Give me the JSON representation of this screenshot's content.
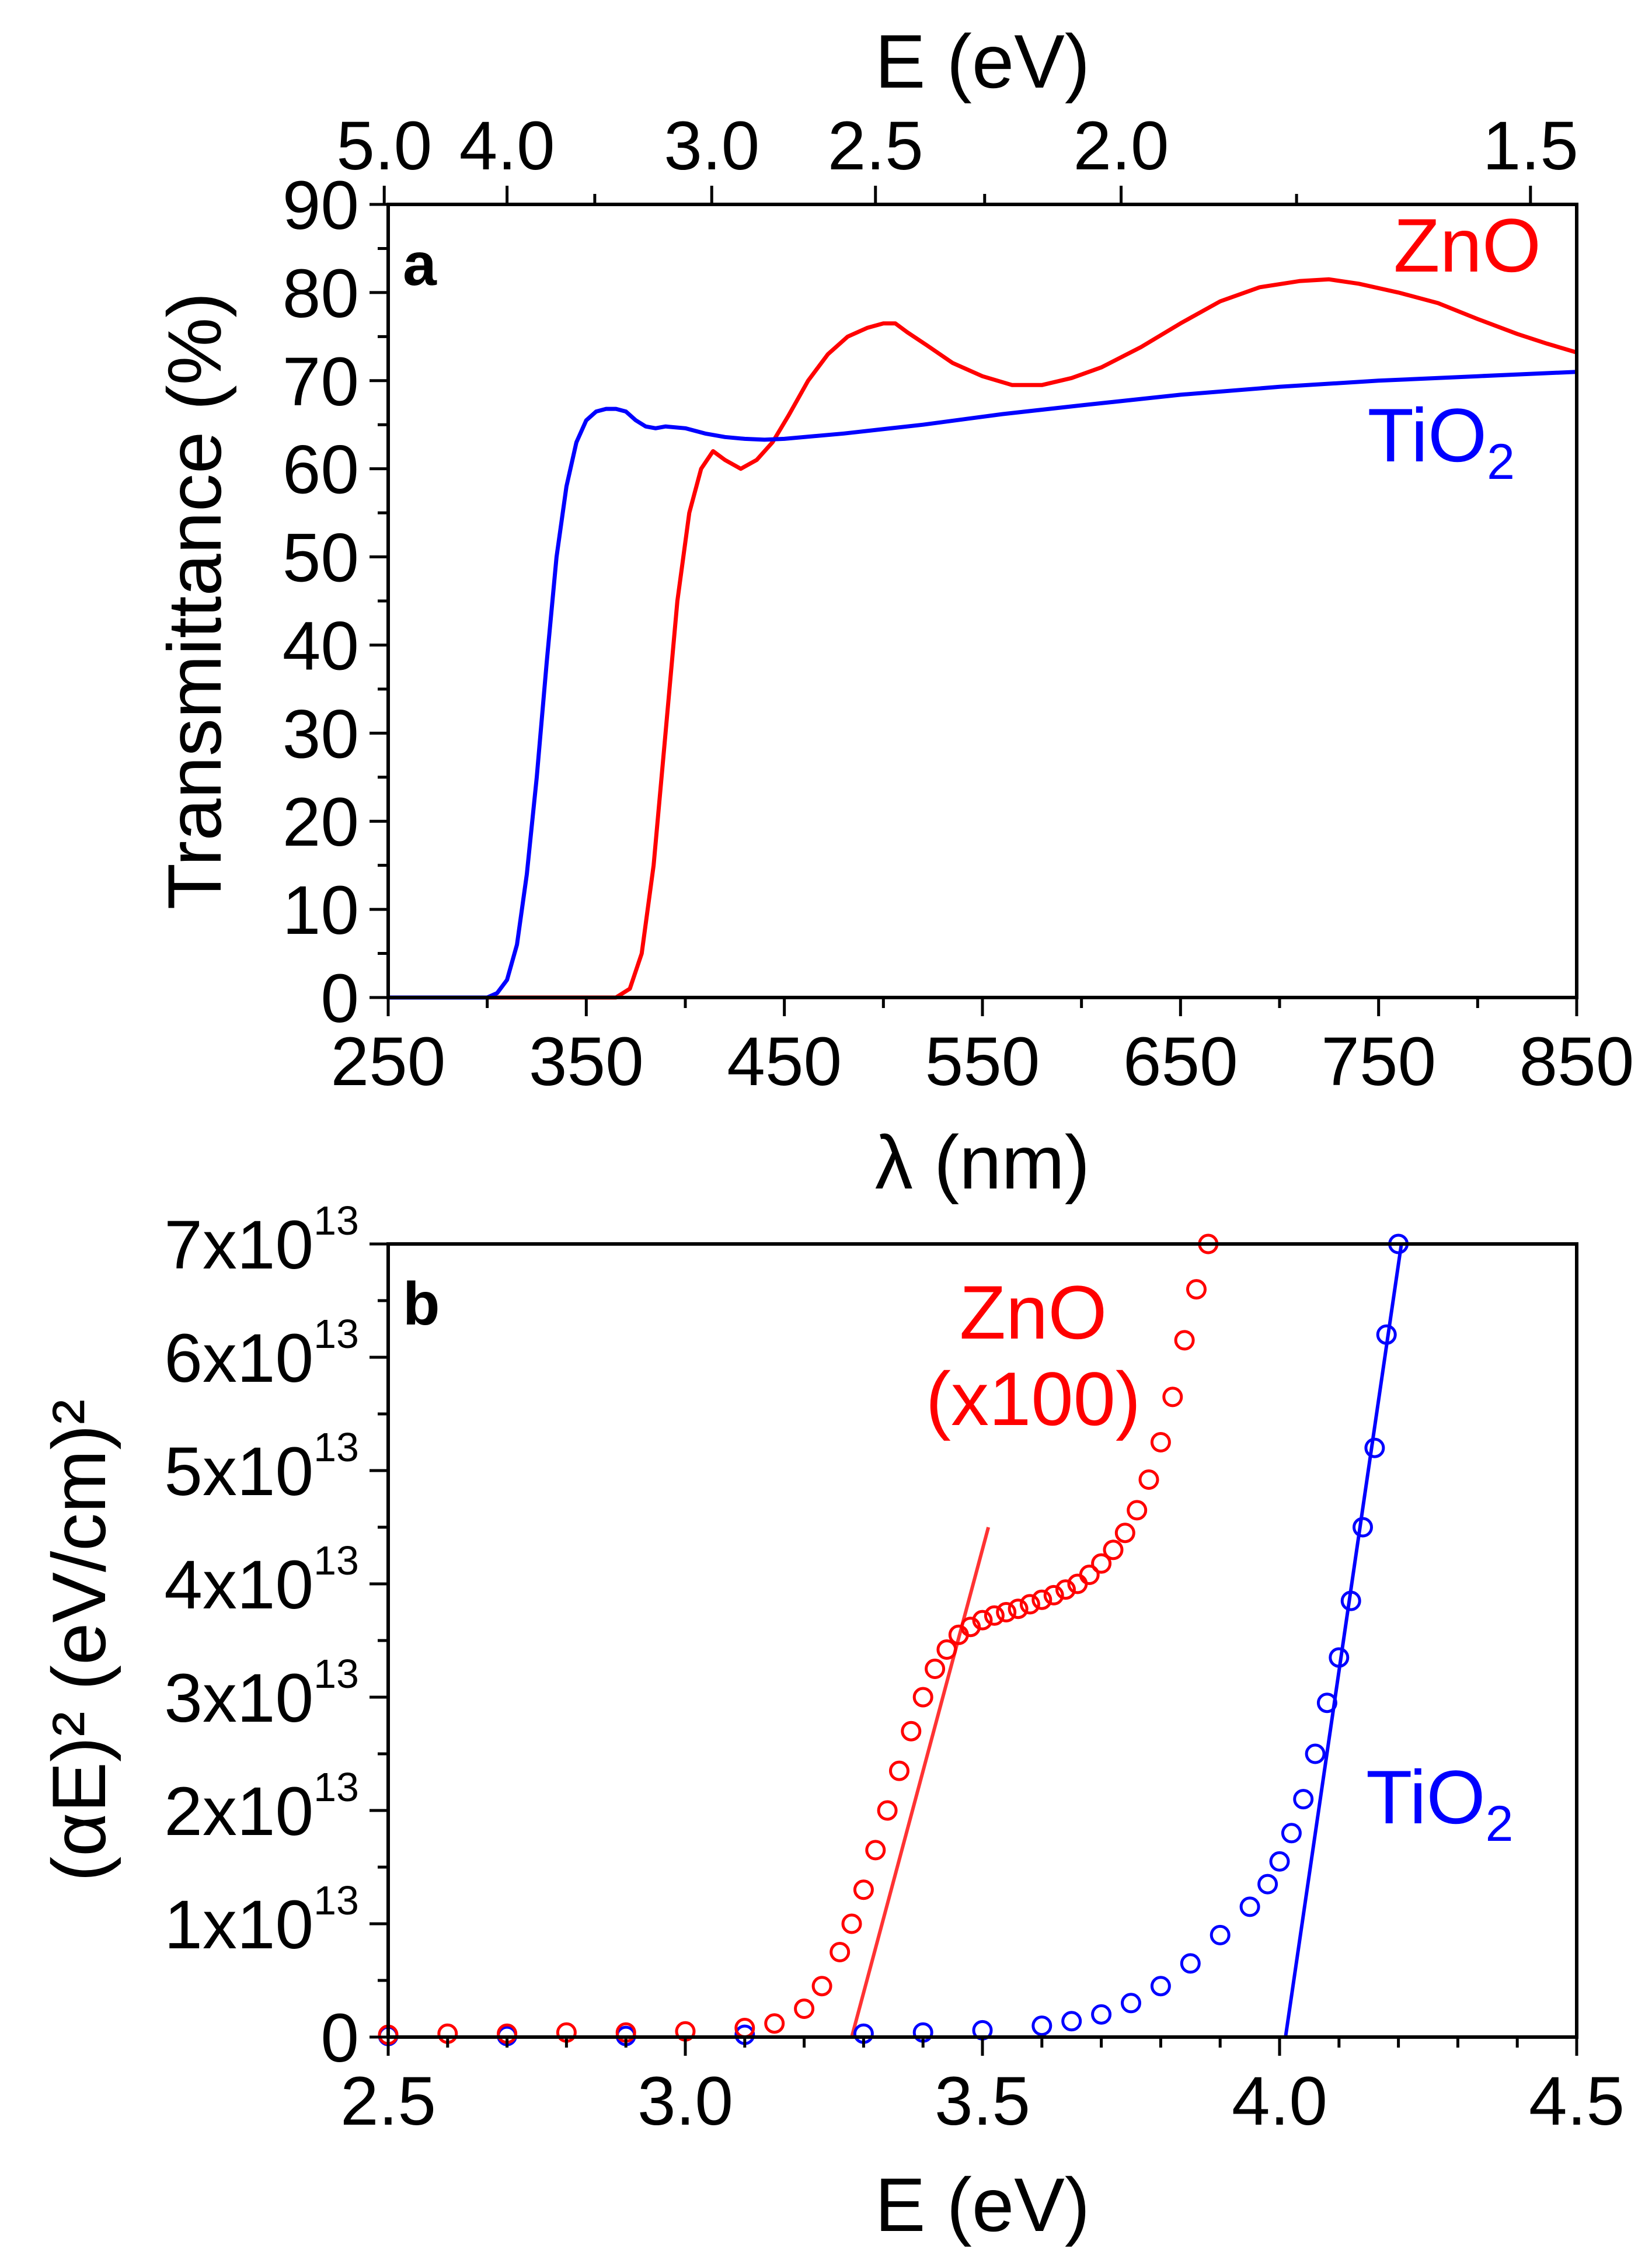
{
  "chart_data": [
    {
      "panel": "a",
      "type": "line",
      "xlabel": "λ (nm)",
      "ylabel": "Transmittance (%)",
      "top_xlabel": "E (eV)",
      "xlim": [
        250,
        850
      ],
      "ylim": [
        0,
        90
      ],
      "x_ticks": [
        "250",
        "350",
        "450",
        "550",
        "650",
        "750",
        "850"
      ],
      "y_ticks": [
        "0",
        "10",
        "20",
        "30",
        "40",
        "50",
        "60",
        "70",
        "80",
        "90"
      ],
      "top_ticks": [
        {
          "label": "5.0",
          "ev": 5.0
        },
        {
          "label": "4.0",
          "ev": 4.0
        },
        {
          "label": "3.0",
          "ev": 3.0
        },
        {
          "label": "2.5",
          "ev": 2.5
        },
        {
          "label": "2.0",
          "ev": 2.0
        },
        {
          "label": "1.5",
          "ev": 1.5
        }
      ],
      "top_minor_ev": [
        3.5,
        2.25,
        1.75
      ],
      "series": [
        {
          "name": "ZnO",
          "label": "ZnO",
          "color": "#ff0000",
          "x": [
            250,
            365,
            372,
            378,
            384,
            390,
            396,
            402,
            408,
            414,
            420,
            428,
            436,
            444,
            452,
            462,
            472,
            482,
            492,
            500,
            506,
            512,
            522,
            535,
            550,
            565,
            580,
            595,
            610,
            630,
            650,
            670,
            690,
            710,
            725,
            740,
            760,
            780,
            800,
            820,
            835,
            850
          ],
          "y": [
            0,
            0,
            1,
            5,
            15,
            30,
            45,
            55,
            60,
            62,
            61,
            60,
            61,
            63,
            66,
            70,
            73,
            75,
            76,
            76.5,
            76.5,
            75.5,
            74,
            72,
            70.5,
            69.5,
            69.5,
            70.3,
            71.5,
            73.8,
            76.5,
            79,
            80.6,
            81.3,
            81.5,
            81,
            80,
            78.8,
            77,
            75.3,
            74.2,
            73.2
          ]
        },
        {
          "name": "TiO2",
          "label": "TiO",
          "subscript": "2",
          "color": "#0000ff",
          "x": [
            250,
            300,
            305,
            310,
            315,
            320,
            325,
            330,
            335,
            340,
            345,
            350,
            355,
            360,
            365,
            370,
            375,
            380,
            385,
            390,
            400,
            410,
            420,
            430,
            440,
            450,
            480,
            520,
            560,
            600,
            650,
            700,
            750,
            800,
            850
          ],
          "y": [
            0,
            0,
            0.5,
            2,
            6,
            14,
            25,
            38,
            50,
            58,
            63,
            65.5,
            66.5,
            66.8,
            66.8,
            66.5,
            65.5,
            64.8,
            64.6,
            64.8,
            64.6,
            64,
            63.6,
            63.4,
            63.3,
            63.4,
            64,
            65,
            66.2,
            67.2,
            68.4,
            69.3,
            70,
            70.5,
            71.0
          ]
        }
      ]
    },
    {
      "panel": "b",
      "type": "scatter",
      "xlabel": "E (eV)",
      "ylabel": "(αE)² (eV/cm)²",
      "xlim": [
        2.5,
        4.5
      ],
      "ylim": [
        0,
        70000000000000.0
      ],
      "x_ticks": [
        "2.5",
        "3.0",
        "3.5",
        "4.0",
        "4.5"
      ],
      "y_ticks": [
        {
          "label": "0"
        },
        {
          "mantissa": "1x10",
          "exp": "13"
        },
        {
          "mantissa": "2x10",
          "exp": "13"
        },
        {
          "mantissa": "3x10",
          "exp": "13"
        },
        {
          "mantissa": "4x10",
          "exp": "13"
        },
        {
          "mantissa": "5x10",
          "exp": "13"
        },
        {
          "mantissa": "6x10",
          "exp": "13"
        },
        {
          "mantissa": "7x10",
          "exp": "13"
        }
      ],
      "series": [
        {
          "name": "ZnO (x100)",
          "label_lines": [
            "ZnO",
            "(x100)"
          ],
          "color": "#ff0000",
          "x": [
            2.5,
            2.6,
            2.7,
            2.8,
            2.9,
            3.0,
            3.1,
            3.15,
            3.2,
            3.23,
            3.26,
            3.28,
            3.3,
            3.32,
            3.34,
            3.36,
            3.38,
            3.4,
            3.42,
            3.44,
            3.46,
            3.48,
            3.5,
            3.52,
            3.54,
            3.56,
            3.58,
            3.6,
            3.62,
            3.64,
            3.66,
            3.68,
            3.7,
            3.72,
            3.74,
            3.76,
            3.78,
            3.8,
            3.82,
            3.84,
            3.86,
            3.88
          ],
          "y": [
            200000000000.0,
            300000000000.0,
            300000000000.0,
            400000000000.0,
            400000000000.0,
            500000000000.0,
            800000000000.0,
            1200000000000.0,
            2500000000000.0,
            4500000000000.0,
            7500000000000.0,
            10000000000000.0,
            13000000000000.0,
            16500000000000.0,
            20000000000000.0,
            23500000000000.0,
            27000000000000.0,
            30000000000000.0,
            32500000000000.0,
            34200000000000.0,
            35500000000000.0,
            36200000000000.0,
            36800000000000.0,
            37200000000000.0,
            37500000000000.0,
            37800000000000.0,
            38200000000000.0,
            38600000000000.0,
            39000000000000.0,
            39500000000000.0,
            40000000000000.0,
            40800000000000.0,
            41800000000000.0,
            43000000000000.0,
            44500000000000.0,
            46500000000000.0,
            49200000000000.0,
            52500000000000.0,
            56500000000000.0,
            61500000000000.0,
            66000000000000.0,
            70000000000000.0
          ]
        },
        {
          "name": "TiO2",
          "label": "TiO",
          "subscript": "2",
          "color": "#0000ff",
          "x": [
            2.5,
            2.7,
            2.9,
            3.1,
            3.3,
            3.4,
            3.5,
            3.6,
            3.65,
            3.7,
            3.75,
            3.8,
            3.85,
            3.9,
            3.95,
            3.98,
            4.0,
            4.02,
            4.04,
            4.06,
            4.08,
            4.1,
            4.12,
            4.14,
            4.16,
            4.18,
            4.2
          ],
          "y": [
            100000000000.0,
            100000000000.0,
            100000000000.0,
            200000000000.0,
            300000000000.0,
            400000000000.0,
            600000000000.0,
            1000000000000.0,
            1400000000000.0,
            2000000000000.0,
            3000000000000.0,
            4500000000000.0,
            6500000000000.0,
            9000000000000.0,
            11500000000000.0,
            13500000000000.0,
            15500000000000.0,
            18000000000000.0,
            21000000000000.0,
            25000000000000.0,
            29500000000000.0,
            33500000000000.0,
            38500000000000.0,
            45000000000000.0,
            52000000000000.0,
            62000000000000.0,
            70000000000000.0
          ]
        }
      ],
      "fit_lines": [
        {
          "name": "ZnO linear fit",
          "color": "#ff3333",
          "x": [
            3.28,
            3.51
          ],
          "y": [
            0,
            45000000000000.0
          ]
        },
        {
          "name": "TiO2 linear fit",
          "color": "#0000ff",
          "x": [
            4.01,
            4.205
          ],
          "y": [
            0,
            70000000000000.0
          ]
        }
      ]
    }
  ]
}
